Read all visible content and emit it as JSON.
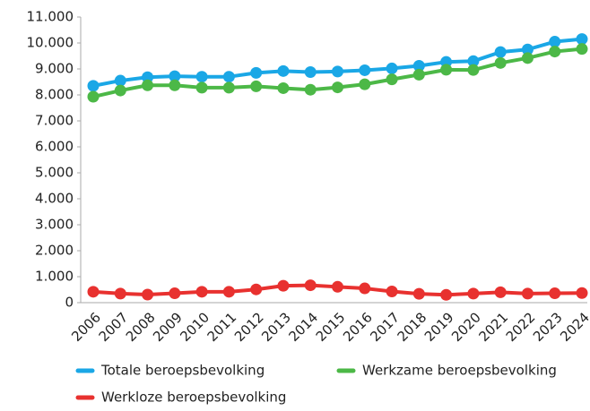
{
  "chart_data": {
    "type": "line",
    "categories": [
      "2006",
      "2007",
      "2008",
      "2009",
      "2010",
      "2011",
      "2012",
      "2013",
      "2014",
      "2015",
      "2016",
      "2017",
      "2018",
      "2019",
      "2020",
      "2021",
      "2022",
      "2023",
      "2024"
    ],
    "series": [
      {
        "name": "Totale beroepsbevolking",
        "color": "#1aa7e6",
        "values": [
          8350,
          8550,
          8680,
          8720,
          8700,
          8700,
          8850,
          8920,
          8880,
          8900,
          8950,
          9020,
          9120,
          9270,
          9300,
          9650,
          9750,
          10050,
          10150
        ]
      },
      {
        "name": "Werkzame beroepsbevolking",
        "color": "#4cb847",
        "values": [
          7930,
          8170,
          8370,
          8370,
          8280,
          8280,
          8330,
          8260,
          8200,
          8290,
          8410,
          8600,
          8780,
          8970,
          8960,
          9230,
          9420,
          9670,
          9770
        ]
      },
      {
        "name": "Werkloze beroepsbevolking",
        "color": "#e8312f",
        "values": [
          420,
          350,
          310,
          360,
          420,
          420,
          510,
          650,
          670,
          610,
          550,
          430,
          340,
          300,
          350,
          400,
          350,
          360,
          370
        ]
      }
    ],
    "ylim": [
      0,
      11000
    ],
    "yticks": [
      0,
      {
        "value": 1000,
        "label": "1.000"
      },
      {
        "value": 2000,
        "label": "2.000"
      },
      {
        "value": 3000,
        "label": "3.000"
      },
      {
        "value": 4000,
        "label": "4.000"
      },
      {
        "value": 5000,
        "label": "5.000"
      },
      {
        "value": 6000,
        "label": "6.000"
      },
      {
        "value": 7000,
        "label": "7.000"
      },
      {
        "value": 8000,
        "label": "8.000"
      },
      {
        "value": 9000,
        "label": "9.000"
      },
      {
        "value": 10000,
        "label": "10.000"
      },
      {
        "value": 11000,
        "label": "11.000"
      }
    ],
    "grid": false,
    "legend": "bottom"
  }
}
